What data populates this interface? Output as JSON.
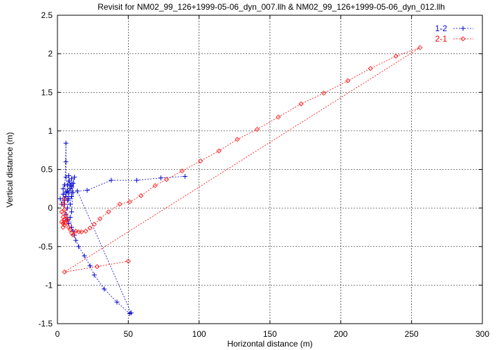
{
  "chart_data": {
    "type": "line",
    "title": "Revisit for NM02_99_126+1999-05-06_dyn_007.llh & NM02_99_126+1999-05-06_dyn_012.llh",
    "xlabel": "Horizontal distance (m)",
    "ylabel": "Vertical distance (m)",
    "xlim": [
      0,
      300
    ],
    "ylim": [
      -1.5,
      2.5
    ],
    "xticks": [
      "0",
      "50",
      "100",
      "150",
      "200",
      "250",
      "300"
    ],
    "yticks": [
      "-1.5",
      "-1",
      "-0.5",
      "0",
      "0.5",
      "1",
      "1.5",
      "2",
      "2.5"
    ],
    "grid": true,
    "legend_position": "top-right",
    "series": [
      {
        "name": "1-2",
        "color": "#0000cc",
        "marker": "plus",
        "points": [
          [
            2,
            0.12
          ],
          [
            3,
            0.05
          ],
          [
            4,
            0.18
          ],
          [
            5,
            0.1
          ],
          [
            4,
            0.25
          ],
          [
            5,
            0.3
          ],
          [
            6,
            0.2
          ],
          [
            5,
            0.05
          ],
          [
            6,
            0.84
          ],
          [
            6,
            0.6
          ],
          [
            6,
            0.4
          ],
          [
            7,
            0.3
          ],
          [
            6,
            0.15
          ],
          [
            7,
            0.22
          ],
          [
            8,
            0.35
          ],
          [
            7,
            0.1
          ],
          [
            8,
            0.2
          ],
          [
            9,
            0.3
          ],
          [
            8,
            0.42
          ],
          [
            9,
            0.25
          ],
          [
            10,
            0.38
          ],
          [
            10,
            0.15
          ],
          [
            11,
            0.32
          ],
          [
            9,
            0.05
          ],
          [
            10,
            -0.05
          ],
          [
            11,
            0.2
          ],
          [
            12,
            0.4
          ],
          [
            10,
            0.28
          ],
          [
            8,
            0.12
          ],
          [
            7,
            0.0
          ],
          [
            6,
            -0.08
          ],
          [
            7,
            -0.15
          ],
          [
            8,
            -0.2
          ],
          [
            9,
            -0.12
          ],
          [
            10,
            -0.25
          ],
          [
            11,
            -0.3
          ],
          [
            12,
            -0.35
          ],
          [
            13,
            -0.42
          ],
          [
            15,
            -0.5
          ],
          [
            19,
            -0.62
          ],
          [
            23,
            -0.75
          ],
          [
            26,
            -0.87
          ],
          [
            33,
            -1.05
          ],
          [
            42,
            -1.22
          ],
          [
            51,
            -1.37
          ],
          [
            52,
            -1.36
          ],
          [
            14,
            0.22
          ],
          [
            21,
            0.23
          ],
          [
            38,
            0.36
          ],
          [
            56,
            0.36
          ],
          [
            73,
            0.39
          ],
          [
            90,
            0.41
          ]
        ]
      },
      {
        "name": "2-1",
        "color": "#ff0000",
        "marker": "diamond",
        "points": [
          [
            3,
            -0.05
          ],
          [
            4,
            -0.12
          ],
          [
            4,
            -0.2
          ],
          [
            5,
            -0.15
          ],
          [
            5,
            0.12
          ],
          [
            4,
            0.05
          ],
          [
            5,
            -0.02
          ],
          [
            6,
            -0.1
          ],
          [
            4,
            -0.25
          ],
          [
            5,
            -0.22
          ],
          [
            3,
            -0.18
          ],
          [
            6,
            -0.2
          ],
          [
            7,
            -0.15
          ],
          [
            8,
            -0.25
          ],
          [
            9,
            -0.28
          ],
          [
            10,
            -0.32
          ],
          [
            11,
            -0.35
          ],
          [
            13,
            -0.3
          ],
          [
            15,
            -0.31
          ],
          [
            17,
            -0.31
          ],
          [
            20,
            -0.3
          ],
          [
            23,
            -0.26
          ],
          [
            26,
            -0.21
          ],
          [
            30,
            -0.14
          ],
          [
            36,
            -0.05
          ],
          [
            44,
            0.05
          ],
          [
            51,
            0.08
          ],
          [
            59,
            0.16
          ],
          [
            69,
            0.29
          ],
          [
            77,
            0.37
          ],
          [
            88,
            0.48
          ],
          [
            101,
            0.61
          ],
          [
            114,
            0.74
          ],
          [
            127,
            0.89
          ],
          [
            141,
            1.02
          ],
          [
            156,
            1.18
          ],
          [
            172,
            1.35
          ],
          [
            188,
            1.49
          ],
          [
            205,
            1.65
          ],
          [
            221,
            1.81
          ],
          [
            239,
            1.97
          ],
          [
            256,
            2.08
          ],
          [
            5,
            -0.83
          ],
          [
            28,
            -0.76
          ],
          [
            50,
            -0.69
          ]
        ]
      }
    ]
  }
}
